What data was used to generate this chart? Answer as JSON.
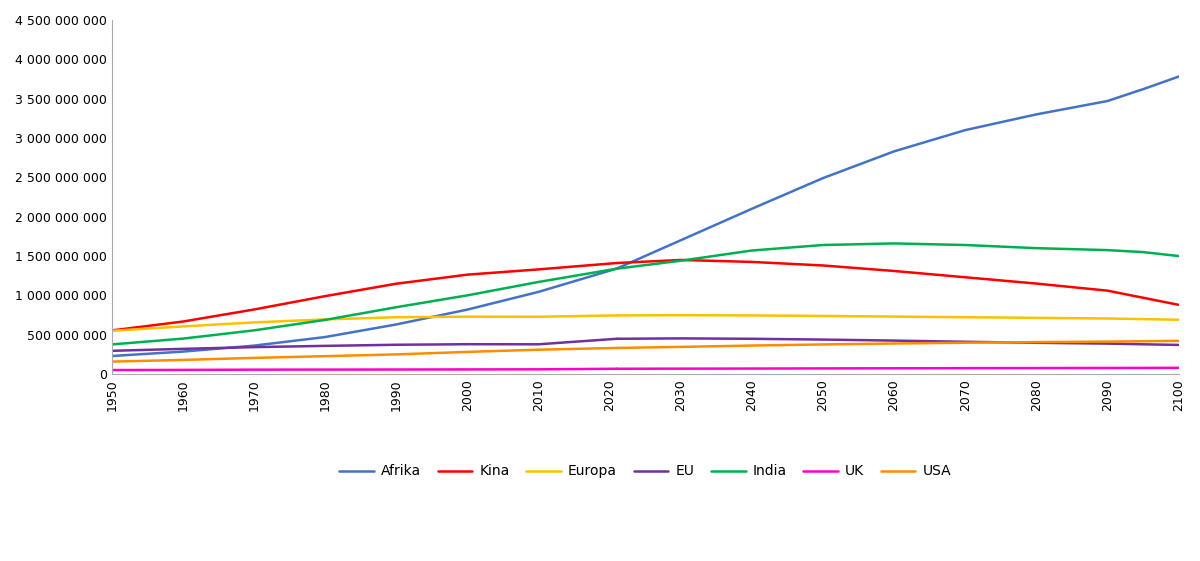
{
  "series": {
    "Afrika": {
      "color": "#4472C4",
      "values": [
        229000000,
        285000000,
        361000000,
        470000000,
        630000000,
        819000000,
        1044000000,
        1340000000,
        1700000000,
        2100000000,
        2490000000,
        2830000000,
        3100000000,
        3300000000,
        3470000000,
        3620000000,
        3780000000
      ]
    },
    "Kina": {
      "color": "#FF0000",
      "values": [
        554000000,
        667000000,
        820000000,
        990000000,
        1148000000,
        1263000000,
        1330000000,
        1411000000,
        1450000000,
        1425000000,
        1380000000,
        1310000000,
        1230000000,
        1150000000,
        1060000000,
        970000000,
        880000000
      ]
    },
    "Europa": {
      "color": "#FFC000",
      "values": [
        549000000,
        605000000,
        656000000,
        694000000,
        722000000,
        729000000,
        728000000,
        745000000,
        748000000,
        745000000,
        738000000,
        730000000,
        722000000,
        714000000,
        706000000,
        698000000,
        690000000
      ]
    },
    "EU": {
      "color": "#7030A0",
      "values": [
        295000000,
        320000000,
        342000000,
        358000000,
        372000000,
        379000000,
        378000000,
        448000000,
        453000000,
        448000000,
        438000000,
        425000000,
        410000000,
        397000000,
        387000000,
        378000000,
        370000000
      ]
    },
    "India": {
      "color": "#00B050",
      "values": [
        376000000,
        450000000,
        555000000,
        688000000,
        849000000,
        1000000000,
        1170000000,
        1339000000,
        1440000000,
        1570000000,
        1640000000,
        1660000000,
        1640000000,
        1600000000,
        1575000000,
        1550000000,
        1500000000
      ]
    },
    "UK": {
      "color": "#FF00CC",
      "values": [
        50600000,
        52400000,
        55600000,
        56400000,
        57200000,
        58700000,
        59700000,
        67100000,
        68400000,
        69600000,
        71500000,
        73200000,
        74700000,
        76000000,
        77000000,
        78000000,
        79000000
      ]
    },
    "USA": {
      "color": "#FF8C00",
      "values": [
        157800000,
        179300000,
        205100000,
        227200000,
        249600000,
        281400000,
        309300000,
        331500000,
        345000000,
        362000000,
        376000000,
        388000000,
        398000000,
        406000000,
        412000000,
        417000000,
        422000000
      ]
    }
  },
  "years_all": [
    1950,
    1960,
    1970,
    1980,
    1990,
    2000,
    2010,
    2021,
    2030,
    2040,
    2050,
    2060,
    2070,
    2080,
    2090,
    2095,
    2100
  ],
  "split_year": 2021,
  "ylim": [
    0,
    4500000000
  ],
  "yticks": [
    0,
    500000000,
    1000000000,
    1500000000,
    2000000000,
    2500000000,
    3000000000,
    3500000000,
    4000000000,
    4500000000
  ],
  "xticks": [
    1950,
    1960,
    1970,
    1980,
    1990,
    2000,
    2010,
    2020,
    2030,
    2040,
    2050,
    2060,
    2070,
    2080,
    2090,
    2100
  ],
  "legend_order": [
    "Afrika",
    "Kina",
    "Europa",
    "EU",
    "India",
    "UK",
    "USA"
  ],
  "background_color": "#FFFFFF",
  "line_width": 1.8
}
